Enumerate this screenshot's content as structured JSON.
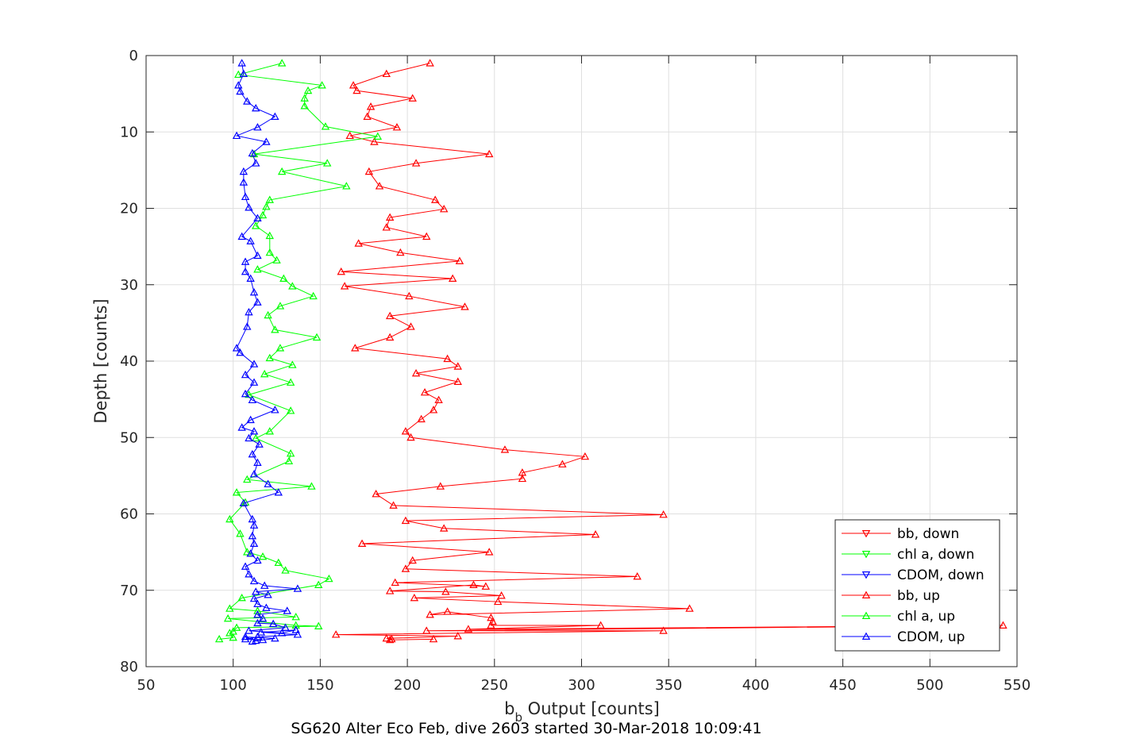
{
  "chart_data": {
    "type": "line",
    "title": "",
    "caption": "SG620 Alter Eco Feb, dive 2603 started 30-Mar-2018 10:09:41",
    "xlabel": {
      "main": "b",
      "sub": "b",
      "rest": " Output [counts]"
    },
    "ylabel": "Depth [counts]",
    "xlim": [
      50,
      550
    ],
    "ylim": [
      0,
      80
    ],
    "y_reversed": true,
    "grid": true,
    "legend_position": "lower-right",
    "xticks": [
      "50",
      "100",
      "150",
      "200",
      "250",
      "300",
      "350",
      "400",
      "450",
      "500",
      "550"
    ],
    "yticks": [
      "0",
      "10",
      "20",
      "30",
      "40",
      "50",
      "60",
      "70",
      "80"
    ],
    "series": [
      {
        "name": "bb, down",
        "color": "#ff0000",
        "marker": "triangle-down",
        "x": [],
        "y": []
      },
      {
        "name": "chl a, down",
        "color": "#00ff00",
        "marker": "triangle-down",
        "x": [],
        "y": []
      },
      {
        "name": "CDOM, down",
        "color": "#0000ff",
        "marker": "triangle-down",
        "x": [],
        "y": []
      },
      {
        "name": "bb, up",
        "color": "#ff0000",
        "marker": "triangle-up",
        "x": [
          213,
          188,
          169,
          171,
          203,
          179,
          177,
          194,
          167,
          181,
          247,
          205,
          178,
          184,
          216,
          221,
          190,
          188,
          211,
          172,
          196,
          230,
          162,
          226,
          164,
          201,
          233,
          190,
          202,
          190,
          170,
          223,
          229,
          205,
          229,
          210,
          218,
          215,
          208,
          199,
          202,
          256,
          302,
          289,
          266,
          266,
          219,
          182,
          192,
          347,
          199,
          221,
          308,
          174,
          247,
          203,
          199,
          332,
          193,
          245,
          238,
          190,
          222,
          254,
          204,
          252,
          362,
          213,
          223,
          248,
          249,
          248,
          311,
          235,
          542,
          211,
          347,
          159,
          229,
          188,
          191,
          190,
          215
        ],
        "y": [
          1,
          2.4,
          3.9,
          4.6,
          5.6,
          6.7,
          8,
          9.4,
          10.5,
          11.3,
          12.9,
          14.1,
          15.2,
          17.1,
          18.9,
          20.1,
          21.2,
          22.5,
          23.7,
          24.6,
          25.8,
          26.9,
          28.3,
          29.2,
          30.2,
          31.5,
          32.9,
          34.1,
          35.5,
          36.9,
          38.3,
          39.7,
          40.7,
          41.6,
          42.7,
          44.1,
          45.1,
          46.4,
          47.6,
          49.2,
          50,
          51.6,
          52.5,
          53.5,
          54.6,
          55.4,
          56.4,
          57.4,
          58.9,
          60.1,
          60.9,
          61.9,
          62.7,
          63.9,
          65,
          66.1,
          67.2,
          68.2,
          69,
          69.5,
          69.3,
          70.1,
          70.2,
          70.7,
          71,
          71.5,
          72.4,
          73.2,
          72.8,
          73.6,
          74.1,
          74.6,
          74.6,
          75.1,
          74.6,
          75.3,
          75.3,
          75.8,
          76,
          76.3,
          76.4,
          76.5,
          76.4
        ]
      },
      {
        "name": "chl a, up",
        "color": "#00ff00",
        "marker": "triangle-up",
        "x": [
          128,
          103,
          151,
          143,
          141,
          141,
          153,
          183,
          112,
          154,
          128,
          165,
          121,
          119,
          117,
          113,
          121,
          121,
          125,
          114,
          129,
          134,
          146,
          127,
          120,
          124,
          148,
          127,
          121,
          134,
          118,
          133,
          109,
          133,
          121,
          113,
          133,
          132,
          108,
          145,
          102,
          107,
          98,
          104,
          108,
          117,
          126,
          130,
          155,
          149,
          105,
          98,
          114,
          136,
          97,
          136,
          149,
          102,
          100,
          98,
          100,
          92
        ],
        "y": [
          1,
          2.5,
          3.9,
          4.6,
          5.6,
          6.6,
          9.3,
          10.6,
          12.9,
          14.1,
          15.2,
          17.1,
          18.9,
          19.8,
          20.9,
          22.3,
          23.6,
          25.8,
          26.8,
          28,
          29.2,
          30.2,
          31.5,
          32.8,
          34,
          35.9,
          36.9,
          38.3,
          39.6,
          40.5,
          41.7,
          42.8,
          44.4,
          46.5,
          49.2,
          50.1,
          52.1,
          53.1,
          55.5,
          56.4,
          57.2,
          58.5,
          60.7,
          62.6,
          65,
          65.6,
          66.4,
          67.4,
          68.5,
          69.3,
          71,
          72.4,
          72.7,
          73.5,
          73.7,
          74.6,
          74.7,
          74.9,
          75.4,
          75.6,
          76.2,
          76.4
        ]
      },
      {
        "name": "CDOM, up",
        "color": "#0000ff",
        "marker": "triangle-up",
        "x": [
          105,
          106,
          103,
          104,
          108,
          113,
          124,
          114,
          102,
          119,
          111,
          113,
          106,
          106,
          107,
          109,
          114,
          105,
          110,
          114,
          107,
          107,
          110,
          112,
          114,
          109,
          108,
          102,
          104,
          112,
          107,
          112,
          107,
          111,
          124,
          110,
          105,
          112,
          109,
          115,
          111,
          114,
          112,
          120,
          126,
          106,
          111,
          112,
          111,
          112,
          110,
          114,
          107,
          109,
          112,
          118,
          137,
          113,
          120,
          112,
          114,
          119,
          131,
          114,
          117,
          114,
          123,
          130,
          109,
          128,
          136,
          116,
          137,
          114,
          107,
          117,
          111,
          124,
          107,
          113
        ],
        "y": [
          1,
          2.4,
          3.9,
          4.7,
          6,
          6.9,
          8,
          9.4,
          10.5,
          11.3,
          12.8,
          14.1,
          15.2,
          16.6,
          18.5,
          19.9,
          21.3,
          23.7,
          24.3,
          26.2,
          27,
          28.3,
          29.2,
          31,
          32.3,
          33.6,
          35.5,
          38.3,
          38.9,
          40.4,
          41.8,
          42.8,
          44.3,
          45.1,
          46.4,
          47.7,
          48.7,
          49.2,
          50.1,
          50.9,
          52.2,
          53.3,
          54.8,
          56.1,
          57.2,
          58.6,
          60.7,
          61.5,
          62.9,
          63.9,
          65.2,
          66.1,
          66.9,
          67.9,
          68.8,
          69.4,
          69.8,
          70.2,
          70.6,
          71.1,
          71.8,
          72.3,
          72.7,
          73.2,
          73.7,
          74.3,
          74.4,
          74.9,
          75.3,
          75.6,
          75.2,
          75.5,
          75.8,
          76.1,
          76.4,
          76.5,
          76.7,
          76.3,
          76.1,
          76.6
        ]
      }
    ]
  }
}
